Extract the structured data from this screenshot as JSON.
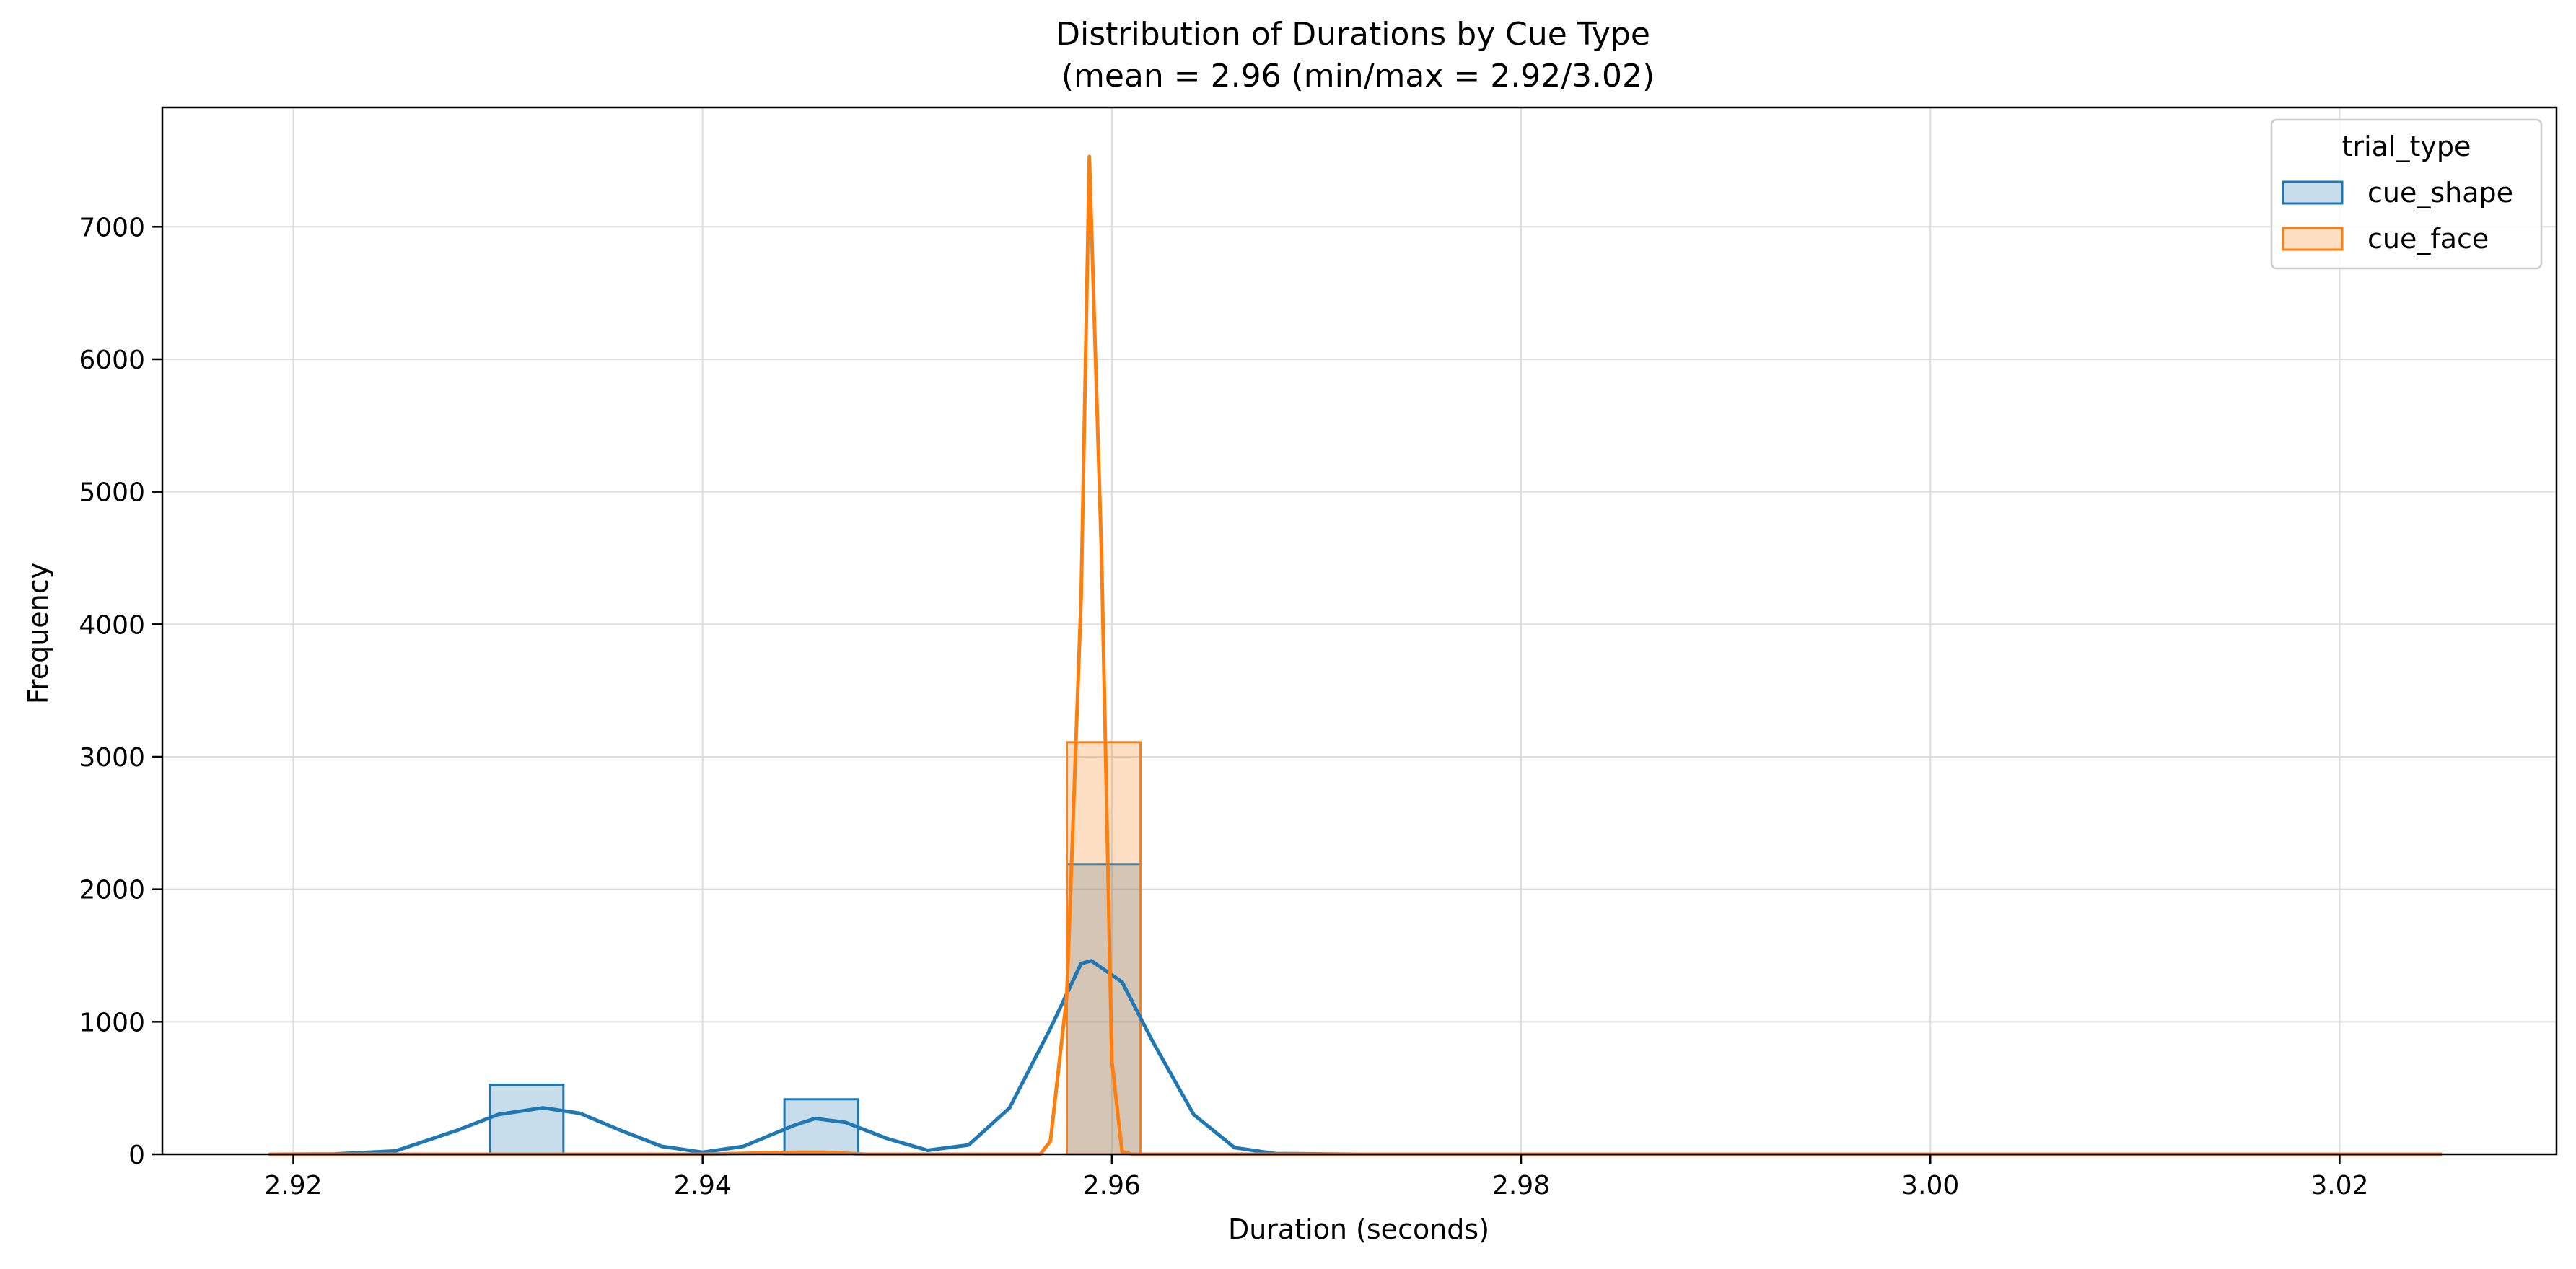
{
  "chart_data": {
    "type": "histogram",
    "title_line1": "Distribution of Durations by Cue Type",
    "title_line2": " (mean = 2.96 (min/max = 2.92/3.02)",
    "xlabel": "Duration (seconds)",
    "ylabel": "Frequency",
    "xlim": [
      2.9136,
      3.0306
    ],
    "ylim": [
      0,
      7900
    ],
    "xticks": [
      2.92,
      2.94,
      2.96,
      2.98,
      3.0,
      3.02
    ],
    "xtick_labels": [
      "2.92",
      "2.94",
      "2.96",
      "2.98",
      "3.00",
      "3.02"
    ],
    "yticks": [
      0,
      1000,
      2000,
      3000,
      4000,
      5000,
      6000,
      7000
    ],
    "ytick_labels": [
      "0",
      "1000",
      "2000",
      "3000",
      "4000",
      "5000",
      "6000",
      "7000"
    ],
    "grid": true,
    "legend": {
      "title": "trial_type",
      "placement": "top-right",
      "entries": [
        "cue_shape",
        "cue_face"
      ]
    },
    "series": [
      {
        "name": "cue_shape",
        "color": "#1f77b4",
        "bins": [
          {
            "x0": 2.9296,
            "x1": 2.9332,
            "value": 525
          },
          {
            "x0": 2.944,
            "x1": 2.9476,
            "value": 415
          },
          {
            "x0": 2.9578,
            "x1": 2.9614,
            "value": 2190
          }
        ],
        "kde": [
          [
            2.9188,
            0
          ],
          [
            2.922,
            2
          ],
          [
            2.925,
            25
          ],
          [
            2.928,
            180
          ],
          [
            2.93,
            300
          ],
          [
            2.9322,
            350
          ],
          [
            2.934,
            310
          ],
          [
            2.936,
            180
          ],
          [
            2.938,
            60
          ],
          [
            2.94,
            15
          ],
          [
            2.942,
            60
          ],
          [
            2.9445,
            220
          ],
          [
            2.9455,
            270
          ],
          [
            2.947,
            240
          ],
          [
            2.949,
            120
          ],
          [
            2.951,
            30
          ],
          [
            2.953,
            70
          ],
          [
            2.955,
            350
          ],
          [
            2.957,
            950
          ],
          [
            2.9585,
            1440
          ],
          [
            2.959,
            1460
          ],
          [
            2.9605,
            1300
          ],
          [
            2.962,
            850
          ],
          [
            2.964,
            300
          ],
          [
            2.966,
            50
          ],
          [
            2.968,
            5
          ],
          [
            2.972,
            0
          ],
          [
            3.025,
            0
          ]
        ]
      },
      {
        "name": "cue_face",
        "color": "#ff7f0e",
        "bins": [
          {
            "x0": 2.9578,
            "x1": 2.9614,
            "value": 3110
          }
        ],
        "kde": [
          [
            2.9188,
            0
          ],
          [
            2.94,
            0
          ],
          [
            2.9445,
            15
          ],
          [
            2.946,
            15
          ],
          [
            2.948,
            0
          ],
          [
            2.9565,
            0
          ],
          [
            2.957,
            100
          ],
          [
            2.9578,
            1200
          ],
          [
            2.9585,
            4200
          ],
          [
            2.9589,
            7530
          ],
          [
            2.9595,
            4500
          ],
          [
            2.96,
            700
          ],
          [
            2.9605,
            20
          ],
          [
            2.961,
            0
          ],
          [
            3.025,
            0
          ]
        ]
      }
    ]
  }
}
